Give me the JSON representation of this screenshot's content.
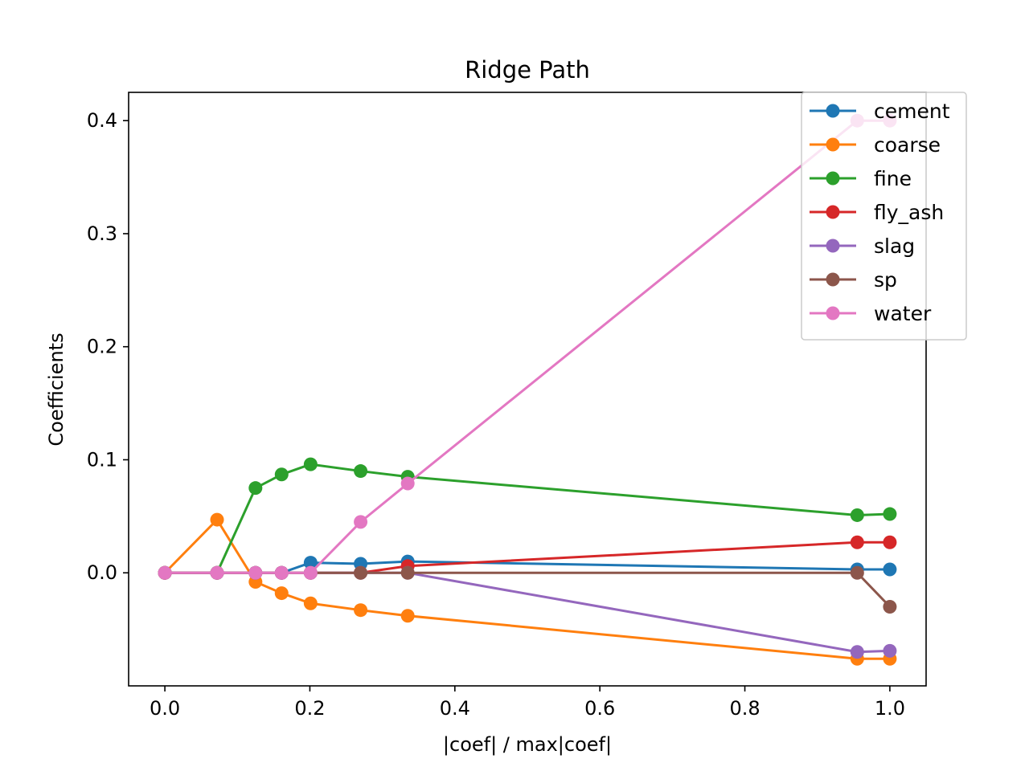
{
  "chart_data": {
    "type": "line",
    "title": "Ridge Path",
    "xlabel": "|coef| / max|coef|",
    "ylabel": "Coefficients",
    "xlim": [
      -0.05,
      1.05
    ],
    "ylim": [
      -0.1,
      0.425
    ],
    "xticks": [
      0.0,
      0.2,
      0.4,
      0.6,
      0.8,
      1.0
    ],
    "xtick_labels": [
      "0.0",
      "0.2",
      "0.4",
      "0.6",
      "0.8",
      "1.0"
    ],
    "yticks": [
      0.0,
      0.1,
      0.2,
      0.3,
      0.4
    ],
    "ytick_labels": [
      "0.0",
      "0.1",
      "0.2",
      "0.3",
      "0.4"
    ],
    "grid": false,
    "legend_position": "upper right",
    "markers": "circle",
    "x": [
      0.0,
      0.072,
      0.125,
      0.161,
      0.201,
      0.27,
      0.335,
      0.955,
      1.0
    ],
    "series": [
      {
        "name": "cement",
        "color": "#1f77b4",
        "values": [
          0.0,
          0.0,
          0.0,
          0.0,
          0.009,
          0.008,
          0.01,
          0.003,
          0.003
        ]
      },
      {
        "name": "coarse",
        "color": "#ff7f0e",
        "values": [
          0.0,
          0.047,
          -0.008,
          -0.018,
          -0.027,
          -0.033,
          -0.038,
          -0.076,
          -0.076
        ]
      },
      {
        "name": "fine",
        "color": "#2ca02c",
        "values": [
          0.0,
          0.0,
          0.075,
          0.087,
          0.096,
          0.09,
          0.085,
          0.051,
          0.052
        ]
      },
      {
        "name": "fly_ash",
        "color": "#d62728",
        "values": [
          0.0,
          0.0,
          0.0,
          0.0,
          0.0,
          0.0,
          0.006,
          0.027,
          0.027
        ]
      },
      {
        "name": "slag",
        "color": "#9467bd",
        "values": [
          0.0,
          0.0,
          0.0,
          0.0,
          0.0,
          0.0,
          0.0,
          -0.07,
          -0.069
        ]
      },
      {
        "name": "sp",
        "color": "#8c564b",
        "values": [
          0.0,
          0.0,
          0.0,
          0.0,
          0.0,
          0.0,
          0.0,
          0.0,
          -0.03
        ]
      },
      {
        "name": "water",
        "color": "#e377c2",
        "values": [
          0.0,
          0.0,
          0.0,
          0.0,
          0.0,
          0.045,
          0.079,
          0.4,
          0.4
        ]
      }
    ]
  }
}
